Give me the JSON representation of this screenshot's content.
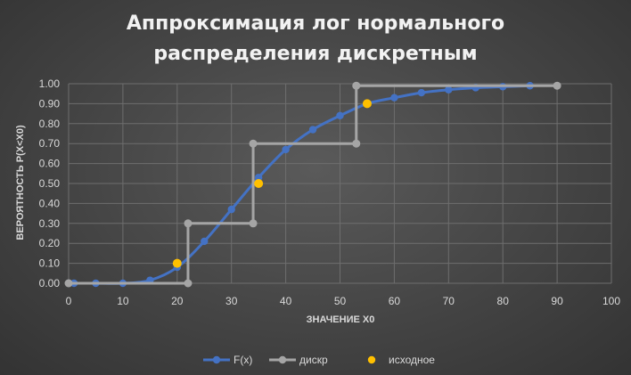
{
  "chart_data": {
    "type": "line",
    "title_lines": [
      "Аппроксимация лог нормального",
      "распределения дискретным"
    ],
    "xlabel": "ЗНАЧЕНИЕ X0",
    "ylabel": "ВЕРОЯТНОСТЬ P(X<X0)",
    "xlim": [
      0,
      100
    ],
    "ylim": [
      0,
      1
    ],
    "xticks": [
      "0",
      "10",
      "20",
      "30",
      "40",
      "50",
      "60",
      "70",
      "80",
      "90",
      "100"
    ],
    "yticks": [
      "0.00",
      "0.10",
      "0.20",
      "0.30",
      "0.40",
      "0.50",
      "0.60",
      "0.70",
      "0.80",
      "0.90",
      "1.00"
    ],
    "grid": true,
    "legend_position": "bottom",
    "series": [
      {
        "name": "F(x)",
        "color": "#4472c4",
        "style": "smooth-line-markers",
        "x": [
          0,
          1,
          5,
          10,
          15,
          20,
          25,
          30,
          35,
          40,
          45,
          50,
          55,
          60,
          65,
          70,
          75,
          80,
          85
        ],
        "y": [
          0.0,
          0.0,
          0.0,
          0.0,
          0.015,
          0.08,
          0.21,
          0.37,
          0.53,
          0.67,
          0.77,
          0.84,
          0.9,
          0.93,
          0.955,
          0.97,
          0.98,
          0.985,
          0.99
        ]
      },
      {
        "name": "дискр",
        "color": "#a5a5a5",
        "style": "line-markers",
        "x": [
          0,
          22,
          22,
          34,
          34,
          53,
          53,
          90
        ],
        "y": [
          0.0,
          0.0,
          0.3,
          0.3,
          0.7,
          0.7,
          0.99,
          0.99
        ]
      },
      {
        "name": "исходное",
        "color": "#ffc000",
        "style": "markers",
        "x": [
          20,
          35,
          55
        ],
        "y": [
          0.1,
          0.5,
          0.9
        ]
      }
    ]
  }
}
